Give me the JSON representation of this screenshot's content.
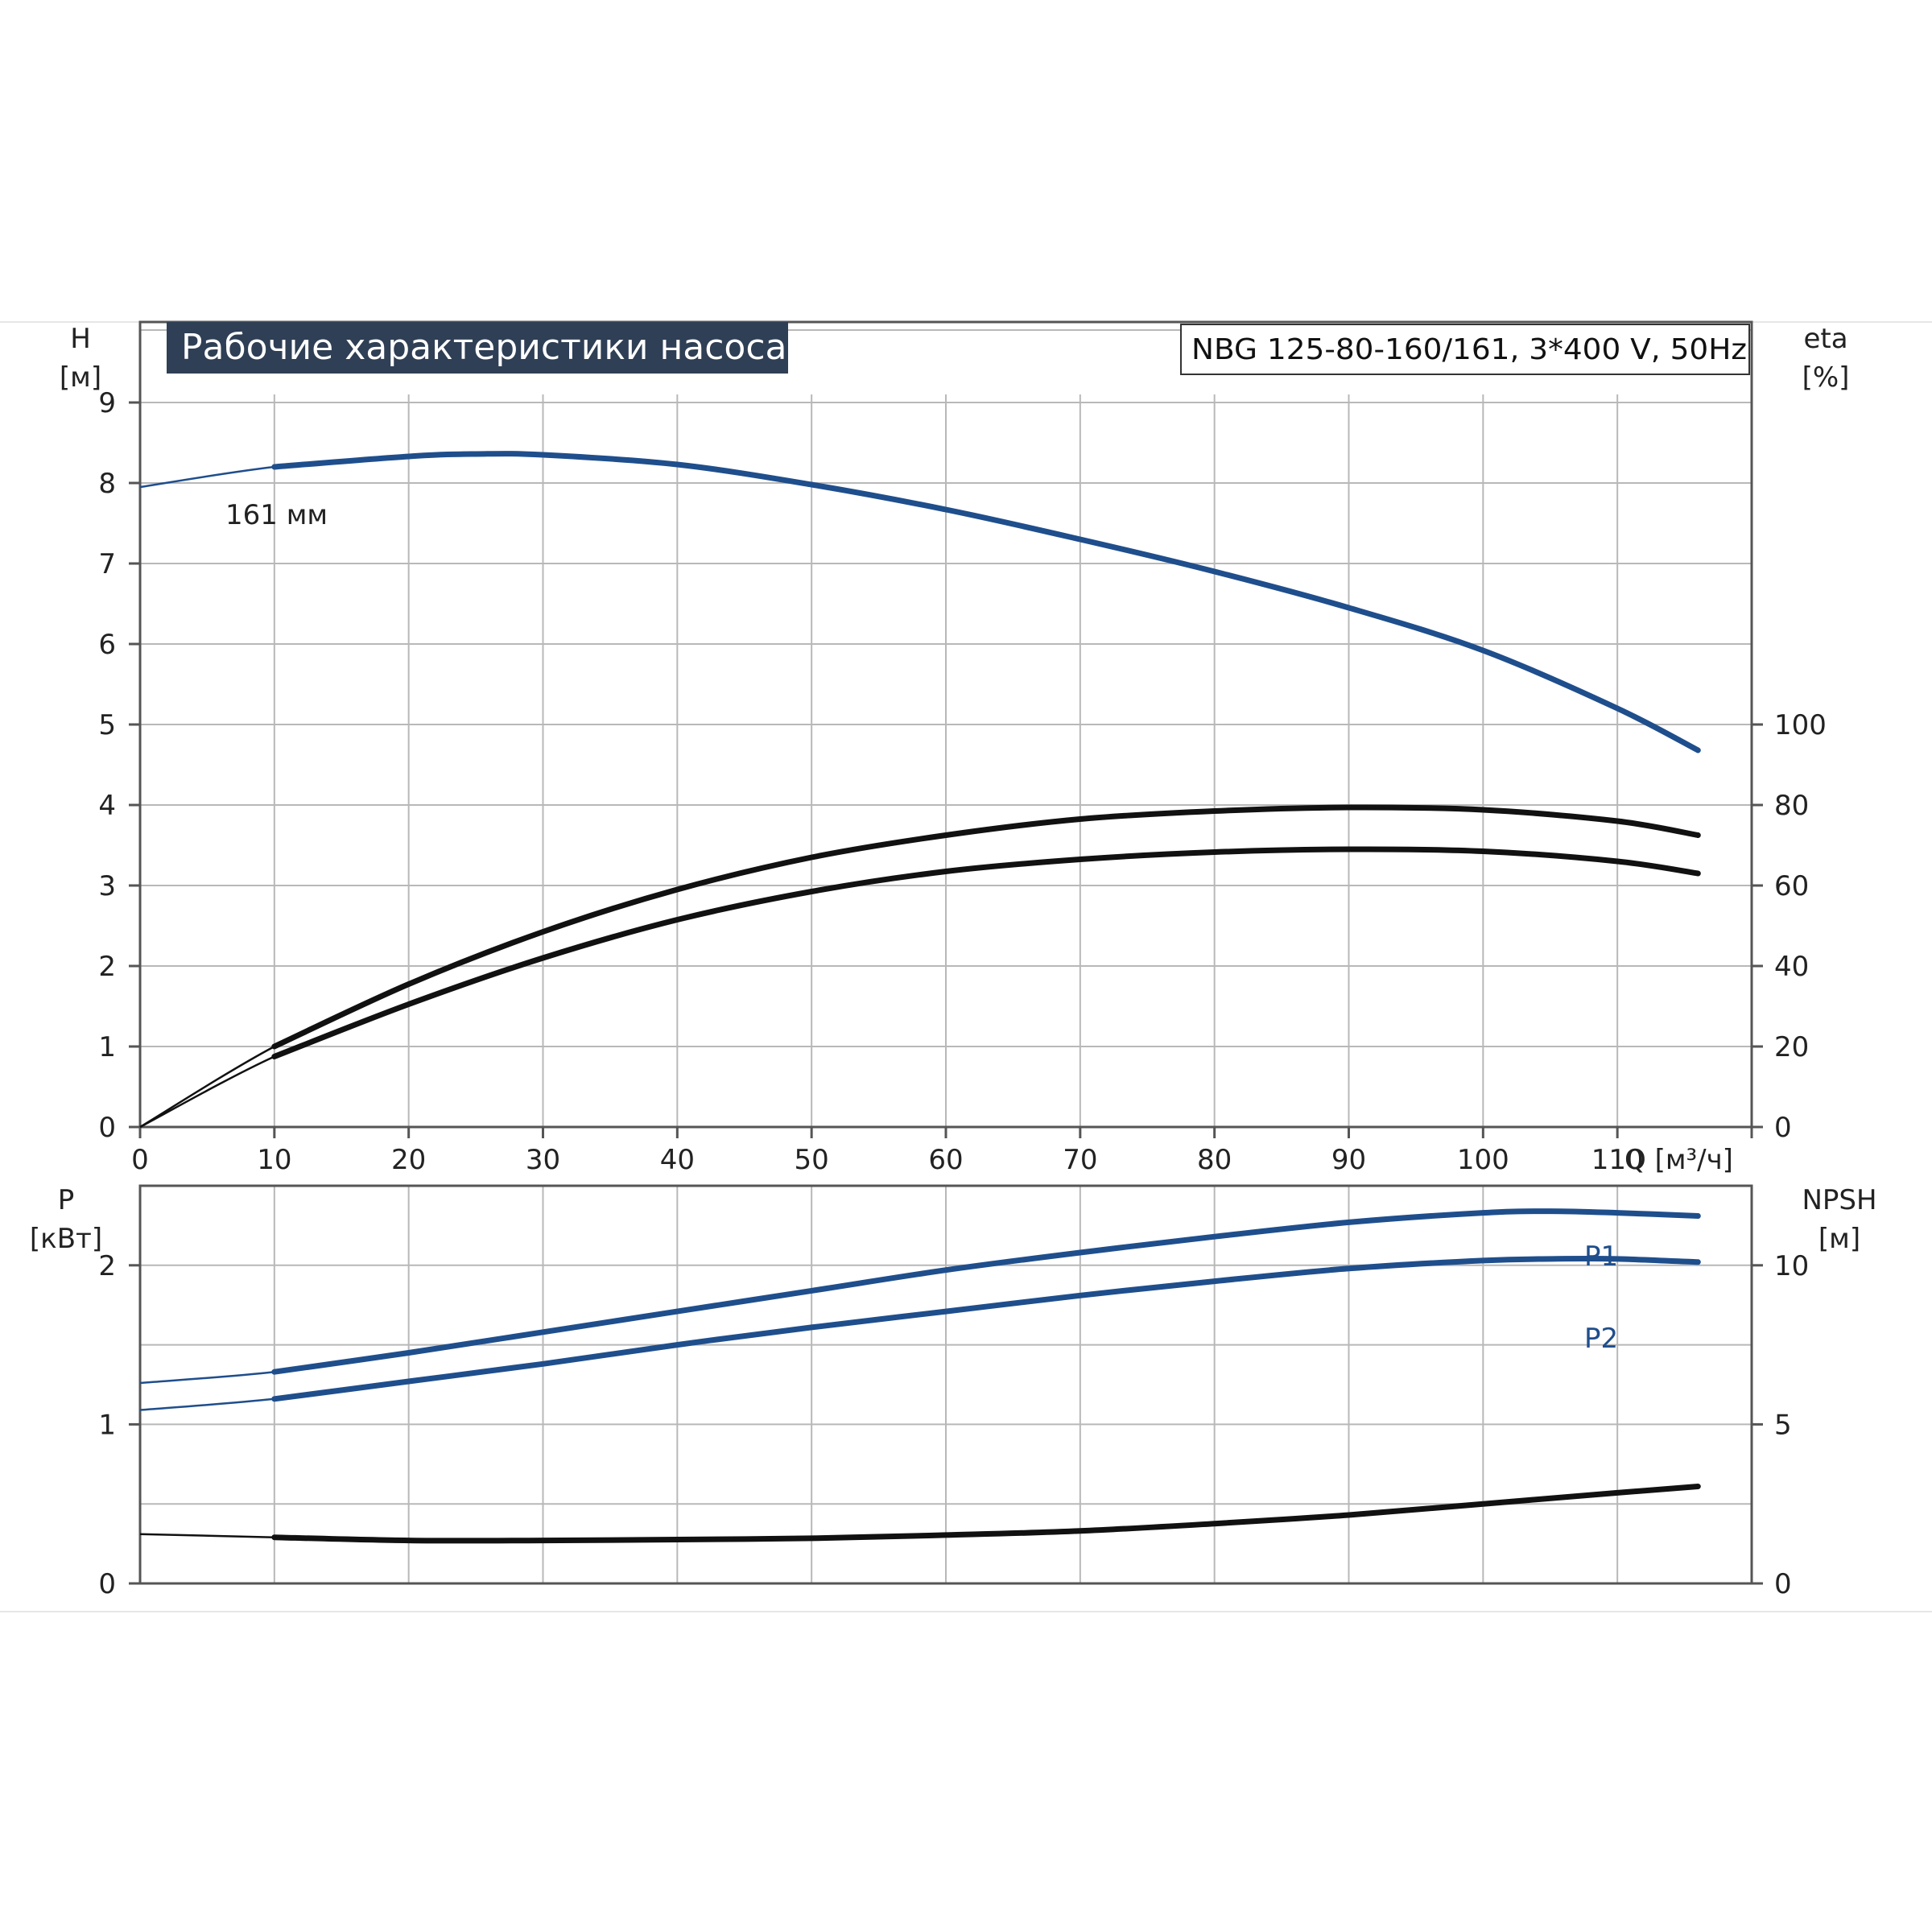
{
  "colors": {
    "blue": "#1f4e8c",
    "black": "#111111",
    "title_bg": "#2f3f55",
    "grid": "#b8b8b8"
  },
  "header": {
    "title": "Рабочие характеристики насоса",
    "model": "NBG 125-80-160/161, 3*400 V, 50Hz"
  },
  "chart_data": [
    {
      "type": "line",
      "panel": "top",
      "xlabel": "Q [м³/ч]",
      "x_ticks": [
        0,
        10,
        20,
        30,
        40,
        50,
        60,
        70,
        80,
        90,
        100,
        110
      ],
      "xlim": [
        0,
        120
      ],
      "ylabel_left": [
        "H",
        "[м]"
      ],
      "y_left_ticks": [
        0,
        1,
        2,
        3,
        4,
        5,
        6,
        7,
        8,
        9
      ],
      "ylim_left": [
        0,
        10
      ],
      "ylabel_right": [
        "eta",
        "[%]"
      ],
      "y_right_ticks": [
        0,
        20,
        40,
        60,
        80,
        100
      ],
      "ylim_right": [
        0,
        200
      ],
      "grid": true,
      "annotations": [
        {
          "text": "161 мм",
          "x": 7,
          "y": 8.25
        }
      ],
      "series": [
        {
          "id": "H",
          "axis": "left",
          "color": "blue",
          "x": [
            0,
            10,
            20,
            25,
            30,
            40,
            50,
            60,
            70,
            80,
            90,
            100,
            110,
            116
          ],
          "y": [
            7.95,
            8.2,
            8.33,
            8.36,
            8.35,
            8.23,
            7.98,
            7.67,
            7.3,
            6.9,
            6.45,
            5.92,
            5.2,
            4.68
          ]
        },
        {
          "id": "eta_upper",
          "axis": "right",
          "color": "black",
          "x": [
            0,
            10,
            20,
            30,
            40,
            50,
            60,
            70,
            80,
            90,
            100,
            110,
            116
          ],
          "y": [
            0,
            20,
            35.5,
            48.5,
            59,
            67,
            72.5,
            76.5,
            78.5,
            79.4,
            78.8,
            76,
            72.5
          ]
        },
        {
          "id": "eta_lower",
          "axis": "right",
          "color": "black",
          "x": [
            0,
            10,
            20,
            30,
            40,
            50,
            60,
            70,
            80,
            90,
            100,
            110,
            116
          ],
          "y": [
            0,
            17.5,
            30.5,
            42,
            51.5,
            58.5,
            63.5,
            66.5,
            68.3,
            69,
            68.5,
            66,
            63
          ]
        }
      ]
    },
    {
      "type": "line",
      "panel": "bottom",
      "xlim": [
        0,
        120
      ],
      "ylabel_left": [
        "P",
        "[кВт]"
      ],
      "y_left_ticks": [
        0,
        1,
        2
      ],
      "ylim_left": [
        0,
        2.5
      ],
      "ylabel_right": [
        "NPSH",
        "[м]"
      ],
      "y_right_ticks": [
        0,
        5,
        10
      ],
      "ylim_right": [
        0,
        12.5
      ],
      "grid": true,
      "series": [
        {
          "id": "P1",
          "name": "P1",
          "axis": "left",
          "color": "blue",
          "x": [
            0,
            10,
            20,
            30,
            40,
            50,
            60,
            70,
            80,
            90,
            100,
            105,
            110,
            116
          ],
          "y": [
            1.26,
            1.33,
            1.45,
            1.58,
            1.71,
            1.84,
            1.97,
            2.08,
            2.18,
            2.27,
            2.33,
            2.34,
            2.33,
            2.31
          ]
        },
        {
          "id": "P2",
          "name": "P2",
          "axis": "left",
          "color": "blue",
          "x": [
            0,
            10,
            20,
            30,
            40,
            50,
            60,
            70,
            80,
            90,
            100,
            105,
            110,
            116
          ],
          "y": [
            1.09,
            1.16,
            1.27,
            1.38,
            1.5,
            1.61,
            1.71,
            1.81,
            1.9,
            1.98,
            2.03,
            2.04,
            2.04,
            2.02
          ]
        },
        {
          "id": "NPSH",
          "axis": "right",
          "color": "black",
          "x": [
            0,
            10,
            20,
            30,
            40,
            50,
            60,
            70,
            80,
            90,
            100,
            110,
            116
          ],
          "y": [
            1.55,
            1.45,
            1.35,
            1.35,
            1.38,
            1.42,
            1.52,
            1.65,
            1.88,
            2.15,
            2.5,
            2.85,
            3.05
          ]
        }
      ]
    }
  ]
}
